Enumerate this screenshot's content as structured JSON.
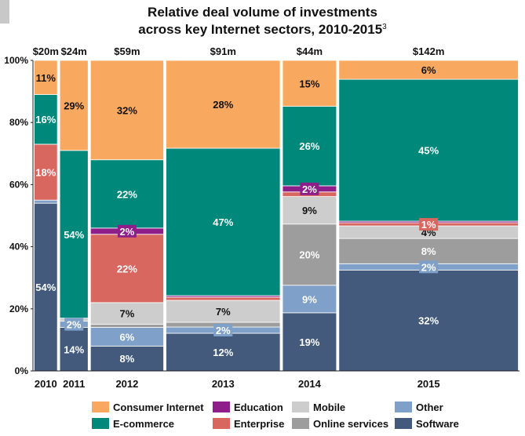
{
  "title_line1": "Relative deal volume of investments",
  "title_line2": "across key Internet sectors, 2010-2015",
  "title_footnote": "3",
  "colors": {
    "Consumer Internet": "#f9a95f",
    "E-commerce": "#00897b",
    "Education": "#8e1f8a",
    "Enterprise": "#d8675f",
    "Mobile": "#cdcdcd",
    "Online services": "#9d9d9d",
    "Other": "#7fa0c8",
    "Software": "#435a7c"
  },
  "chart_data": {
    "type": "mekko",
    "title": "Relative deal volume of investments across key Internet sectors, 2010-2015",
    "ylim": [
      0,
      100
    ],
    "y_ticks": [
      "0%",
      "20%",
      "40%",
      "60%",
      "80%",
      "100%"
    ],
    "categories": [
      "2010",
      "2011",
      "2012",
      "2013",
      "2014",
      "2015"
    ],
    "totals": [
      "$20m",
      "$24m",
      "$59m",
      "$91m",
      "$44m",
      "$142m"
    ],
    "widths": [
      20,
      24,
      59,
      91,
      44,
      142
    ],
    "series_order": [
      "Software",
      "Other",
      "Online services",
      "Mobile",
      "Enterprise",
      "Education",
      "E-commerce",
      "Consumer Internet"
    ],
    "values": {
      "2010": {
        "Software": 54,
        "Other": 1,
        "Online services": 0,
        "Mobile": 0,
        "Enterprise": 18,
        "Education": 0,
        "E-commerce": 16,
        "Consumer Internet": 11
      },
      "2011": {
        "Software": 14,
        "Other": 2,
        "Online services": 0,
        "Mobile": 1,
        "Enterprise": 0,
        "Education": 0,
        "E-commerce": 54,
        "Consumer Internet": 29
      },
      "2012": {
        "Software": 8,
        "Other": 6,
        "Online services": 1,
        "Mobile": 7,
        "Enterprise": 22,
        "Education": 2,
        "E-commerce": 22,
        "Consumer Internet": 32
      },
      "2013": {
        "Software": 12,
        "Other": 2,
        "Online services": 1.5,
        "Mobile": 7,
        "Enterprise": 1,
        "Education": 0.5,
        "E-commerce": 47,
        "Consumer Internet": 28
      },
      "2014": {
        "Software": 19,
        "Other": 9,
        "Online services": 20,
        "Mobile": 9,
        "Enterprise": 1.5,
        "Education": 2,
        "E-commerce": 26,
        "Consumer Internet": 15
      },
      "2015": {
        "Software": 32,
        "Other": 2,
        "Online services": 8,
        "Mobile": 4,
        "Enterprise": 1,
        "Education": 0.5,
        "E-commerce": 45,
        "Consumer Internet": 6
      }
    },
    "labels": {
      "2010": {
        "Software": "54%",
        "Enterprise": "18%",
        "E-commerce": "16%",
        "Consumer Internet": "11%"
      },
      "2011": {
        "Software": "14%",
        "Other": "2%",
        "E-commerce": "54%",
        "Consumer Internet": "29%"
      },
      "2012": {
        "Software": "8%",
        "Other": "6%",
        "Mobile": "7%",
        "Enterprise": "22%",
        "Education": "2%",
        "E-commerce": "22%",
        "Consumer Internet": "32%"
      },
      "2013": {
        "Software": "12%",
        "Other": "2%",
        "Mobile": "7%",
        "E-commerce": "47%",
        "Consumer Internet": "28%"
      },
      "2014": {
        "Software": "19%",
        "Other": "9%",
        "Online services": "20%",
        "Mobile": "9%",
        "Education": "2%",
        "E-commerce": "26%",
        "Consumer Internet": "15%"
      },
      "2015": {
        "Software": "32%",
        "Other": "2%",
        "Online services": "8%",
        "Mobile": "4%",
        "Enterprise": "1%",
        "E-commerce": "45%",
        "Consumer Internet": "6%"
      }
    },
    "legend": [
      "Consumer Internet",
      "Education",
      "Mobile",
      "Other",
      "E-commerce",
      "Enterprise",
      "Online services",
      "Software"
    ]
  }
}
